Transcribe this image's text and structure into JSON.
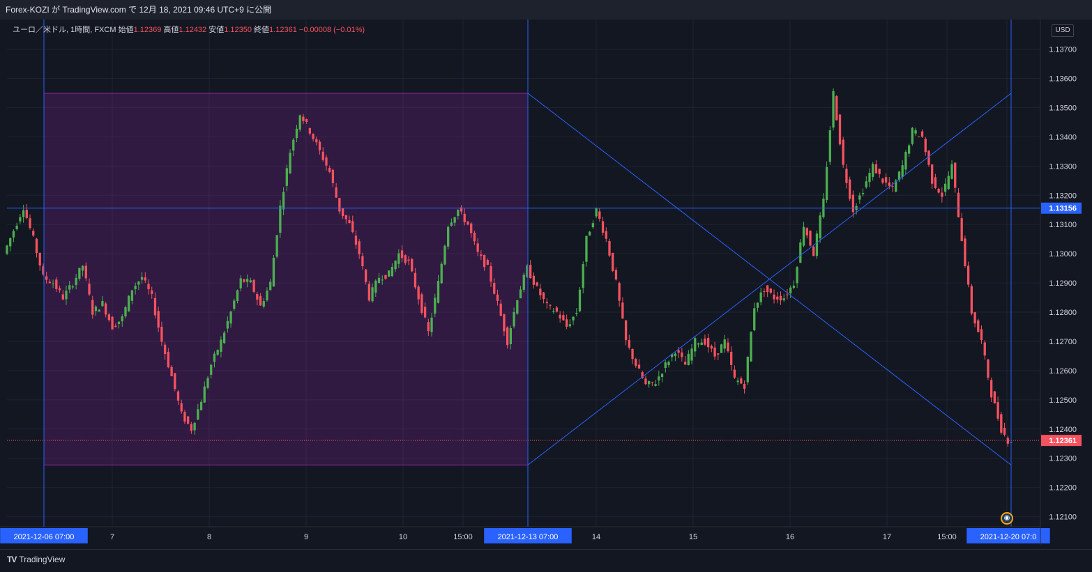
{
  "header": {
    "publisher_line": "Forex-KOZI が TradingView.com で 12月 18, 2021 09:46 UTC+9 に公開"
  },
  "legend": {
    "symbol": "ユーロ／米ドル, 1時間, FXCM",
    "open_label": "始値",
    "open": "1.12369",
    "high_label": "高値",
    "high": "1.12432",
    "low_label": "安値",
    "low": "1.12350",
    "close_label": "終値",
    "close": "1.12361",
    "change": "−0.00008 (−0.01%)"
  },
  "currency_button": "USD",
  "footer": {
    "brand": "TradingView",
    "brand_mark": "𝟏𝟕"
  },
  "colors": {
    "up": "#4caf50",
    "down": "#f7525f",
    "line": "#2962ff",
    "box": "#9c27b0",
    "axis_label_bg": "#2962ff"
  },
  "chart_data": {
    "type": "candlestick",
    "title": "",
    "y_ticks": [
      "1.13700",
      "1.13600",
      "1.13500",
      "1.13400",
      "1.13300",
      "1.13200",
      "1.13100",
      "1.13000",
      "1.12900",
      "1.12800",
      "1.12700",
      "1.12600",
      "1.12500",
      "1.12400",
      "1.12300",
      "1.12200",
      "1.12100"
    ],
    "ylim": [
      1.1208,
      1.1373
    ],
    "x_ticks": [
      {
        "label": "2021-12-06   07:00",
        "highlight": true
      },
      {
        "label": "7"
      },
      {
        "label": "8"
      },
      {
        "label": "9"
      },
      {
        "label": "10"
      },
      {
        "label": "15:00"
      },
      {
        "label": "2021-12-13   07:00",
        "highlight": true
      },
      {
        "label": "14"
      },
      {
        "label": "15"
      },
      {
        "label": "16"
      },
      {
        "label": "17"
      },
      {
        "label": "15:00"
      },
      {
        "label": "2021-12-20   07:0",
        "highlight": true
      }
    ],
    "price_labels": [
      {
        "value": "1.13156",
        "kind": "crosshair"
      },
      {
        "value": "1.12361",
        "kind": "last"
      }
    ],
    "crosshair_price": 1.13156,
    "last_price": 1.12361,
    "range_box": {
      "from_date": "2021-12-06 07:00",
      "to_date": "2021-12-13 07:00",
      "high": 1.13549,
      "low": 1.12277
    },
    "projection_lines": [
      {
        "from_date": "2021-12-13 07:00",
        "from": 1.13549,
        "to_date": "2021-12-20 07:00",
        "to": 1.12277
      },
      {
        "from_date": "2021-12-13 07:00",
        "from": 1.12277,
        "to_date": "2021-12-20 07:00",
        "to": 1.13549
      }
    ],
    "path_points": [
      [
        0,
        1.13
      ],
      [
        3,
        1.1308
      ],
      [
        6,
        1.1316
      ],
      [
        9,
        1.1305
      ],
      [
        12,
        1.1292
      ],
      [
        15,
        1.129
      ],
      [
        18,
        1.1285
      ],
      [
        21,
        1.129
      ],
      [
        24,
        1.1296
      ],
      [
        27,
        1.128
      ],
      [
        30,
        1.1283
      ],
      [
        33,
        1.1275
      ],
      [
        36,
        1.1278
      ],
      [
        39,
        1.1288
      ],
      [
        42,
        1.1292
      ],
      [
        45,
        1.1285
      ],
      [
        48,
        1.127
      ],
      [
        51,
        1.1258
      ],
      [
        54,
        1.1245
      ],
      [
        57,
        1.124
      ],
      [
        60,
        1.125
      ],
      [
        63,
        1.1262
      ],
      [
        66,
        1.127
      ],
      [
        69,
        1.128
      ],
      [
        72,
        1.1291
      ],
      [
        75,
        1.129
      ],
      [
        78,
        1.1282
      ],
      [
        81,
        1.129
      ],
      [
        84,
        1.1316
      ],
      [
        87,
        1.1335
      ],
      [
        90,
        1.1348
      ],
      [
        93,
        1.1342
      ],
      [
        96,
        1.1335
      ],
      [
        99,
        1.1328
      ],
      [
        102,
        1.1315
      ],
      [
        105,
        1.131
      ],
      [
        108,
        1.13
      ],
      [
        111,
        1.1285
      ],
      [
        114,
        1.1292
      ],
      [
        117,
        1.1293
      ],
      [
        120,
        1.13
      ],
      [
        123,
        1.1297
      ],
      [
        126,
        1.1285
      ],
      [
        129,
        1.1273
      ],
      [
        132,
        1.129
      ],
      [
        135,
        1.131
      ],
      [
        138,
        1.1315
      ],
      [
        141,
        1.131
      ],
      [
        144,
        1.13
      ],
      [
        147,
        1.1295
      ],
      [
        150,
        1.1283
      ],
      [
        153,
        1.127
      ],
      [
        156,
        1.1285
      ],
      [
        159,
        1.1295
      ],
      [
        162,
        1.1288
      ],
      [
        165,
        1.1282
      ],
      [
        168,
        1.128
      ],
      [
        171,
        1.1275
      ],
      [
        174,
        1.128
      ],
      [
        177,
        1.1305
      ],
      [
        180,
        1.1315
      ],
      [
        183,
        1.1305
      ],
      [
        186,
        1.129
      ],
      [
        189,
        1.127
      ],
      [
        192,
        1.1262
      ],
      [
        195,
        1.1255
      ],
      [
        198,
        1.1256
      ],
      [
        201,
        1.1262
      ],
      [
        204,
        1.1267
      ],
      [
        207,
        1.1262
      ],
      [
        210,
        1.127
      ],
      [
        213,
        1.127
      ],
      [
        216,
        1.1265
      ],
      [
        219,
        1.127
      ],
      [
        222,
        1.1257
      ],
      [
        225,
        1.1255
      ],
      [
        228,
        1.1282
      ],
      [
        231,
        1.1288
      ],
      [
        234,
        1.1285
      ],
      [
        237,
        1.1285
      ],
      [
        240,
        1.129
      ],
      [
        243,
        1.131
      ],
      [
        246,
        1.13
      ],
      [
        249,
        1.1318
      ],
      [
        252,
        1.1355
      ],
      [
        255,
        1.133
      ],
      [
        258,
        1.1315
      ],
      [
        261,
        1.1322
      ],
      [
        264,
        1.133
      ],
      [
        267,
        1.1325
      ],
      [
        270,
        1.1322
      ],
      [
        273,
        1.133
      ],
      [
        276,
        1.1342
      ],
      [
        279,
        1.134
      ],
      [
        282,
        1.1325
      ],
      [
        285,
        1.132
      ],
      [
        288,
        1.133
      ],
      [
        291,
        1.1305
      ],
      [
        294,
        1.128
      ],
      [
        297,
        1.127
      ],
      [
        300,
        1.1252
      ],
      [
        303,
        1.124
      ],
      [
        305,
        1.12361
      ]
    ]
  }
}
